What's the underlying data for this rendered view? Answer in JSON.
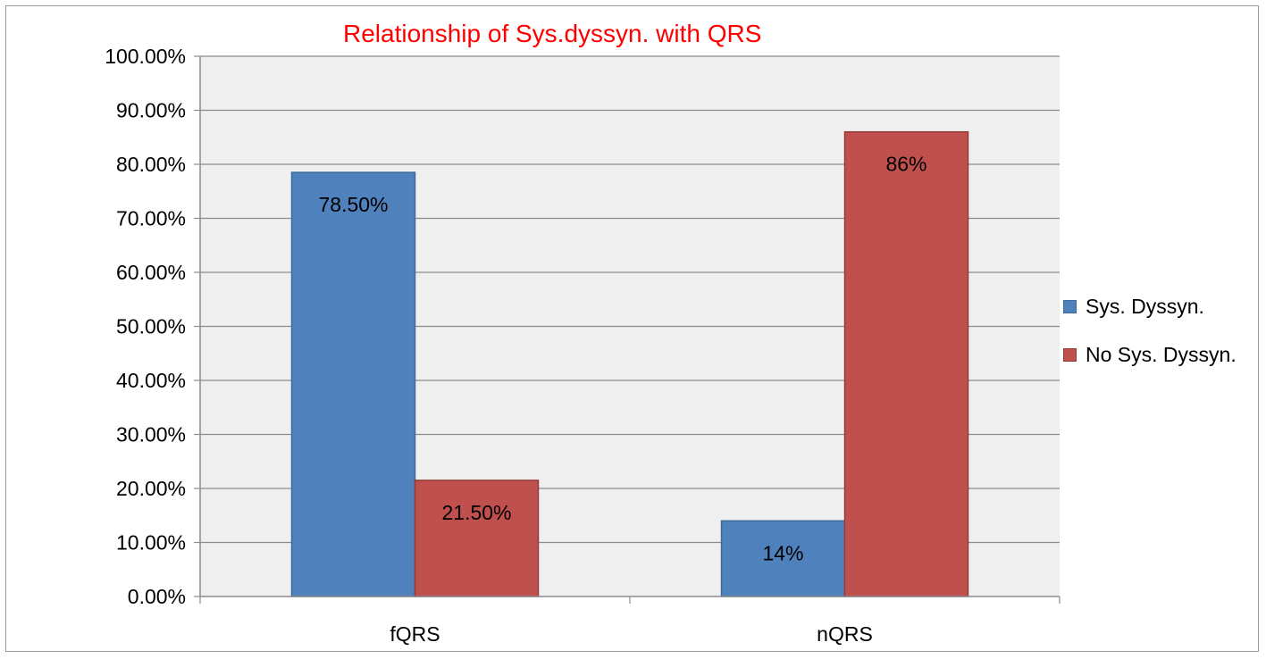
{
  "chart_data": {
    "type": "bar",
    "title": "Relationship of Sys.dyssyn. with QRS",
    "xlabel": "",
    "ylabel": "",
    "categories": [
      "fQRS",
      "nQRS"
    ],
    "series": [
      {
        "name": "Sys. Dyssyn.",
        "values": [
          78.5,
          14
        ],
        "labels": [
          "78.50%",
          "14%"
        ],
        "color": "#4f81bd",
        "border": "#3c6a9c"
      },
      {
        "name": "No Sys. Dyssyn.",
        "values": [
          21.5,
          86
        ],
        "labels": [
          "21.50%",
          "86%"
        ],
        "color": "#c0504d",
        "border": "#943a37"
      }
    ],
    "ylim": [
      0,
      100
    ],
    "yticks": [
      "0.00%",
      "10.00%",
      "20.00%",
      "30.00%",
      "40.00%",
      "50.00%",
      "60.00%",
      "70.00%",
      "80.00%",
      "90.00%",
      "100.00%"
    ],
    "grid": true,
    "legend_position": "right",
    "plot_background": "#efefef",
    "title_color": "#ff0000"
  }
}
